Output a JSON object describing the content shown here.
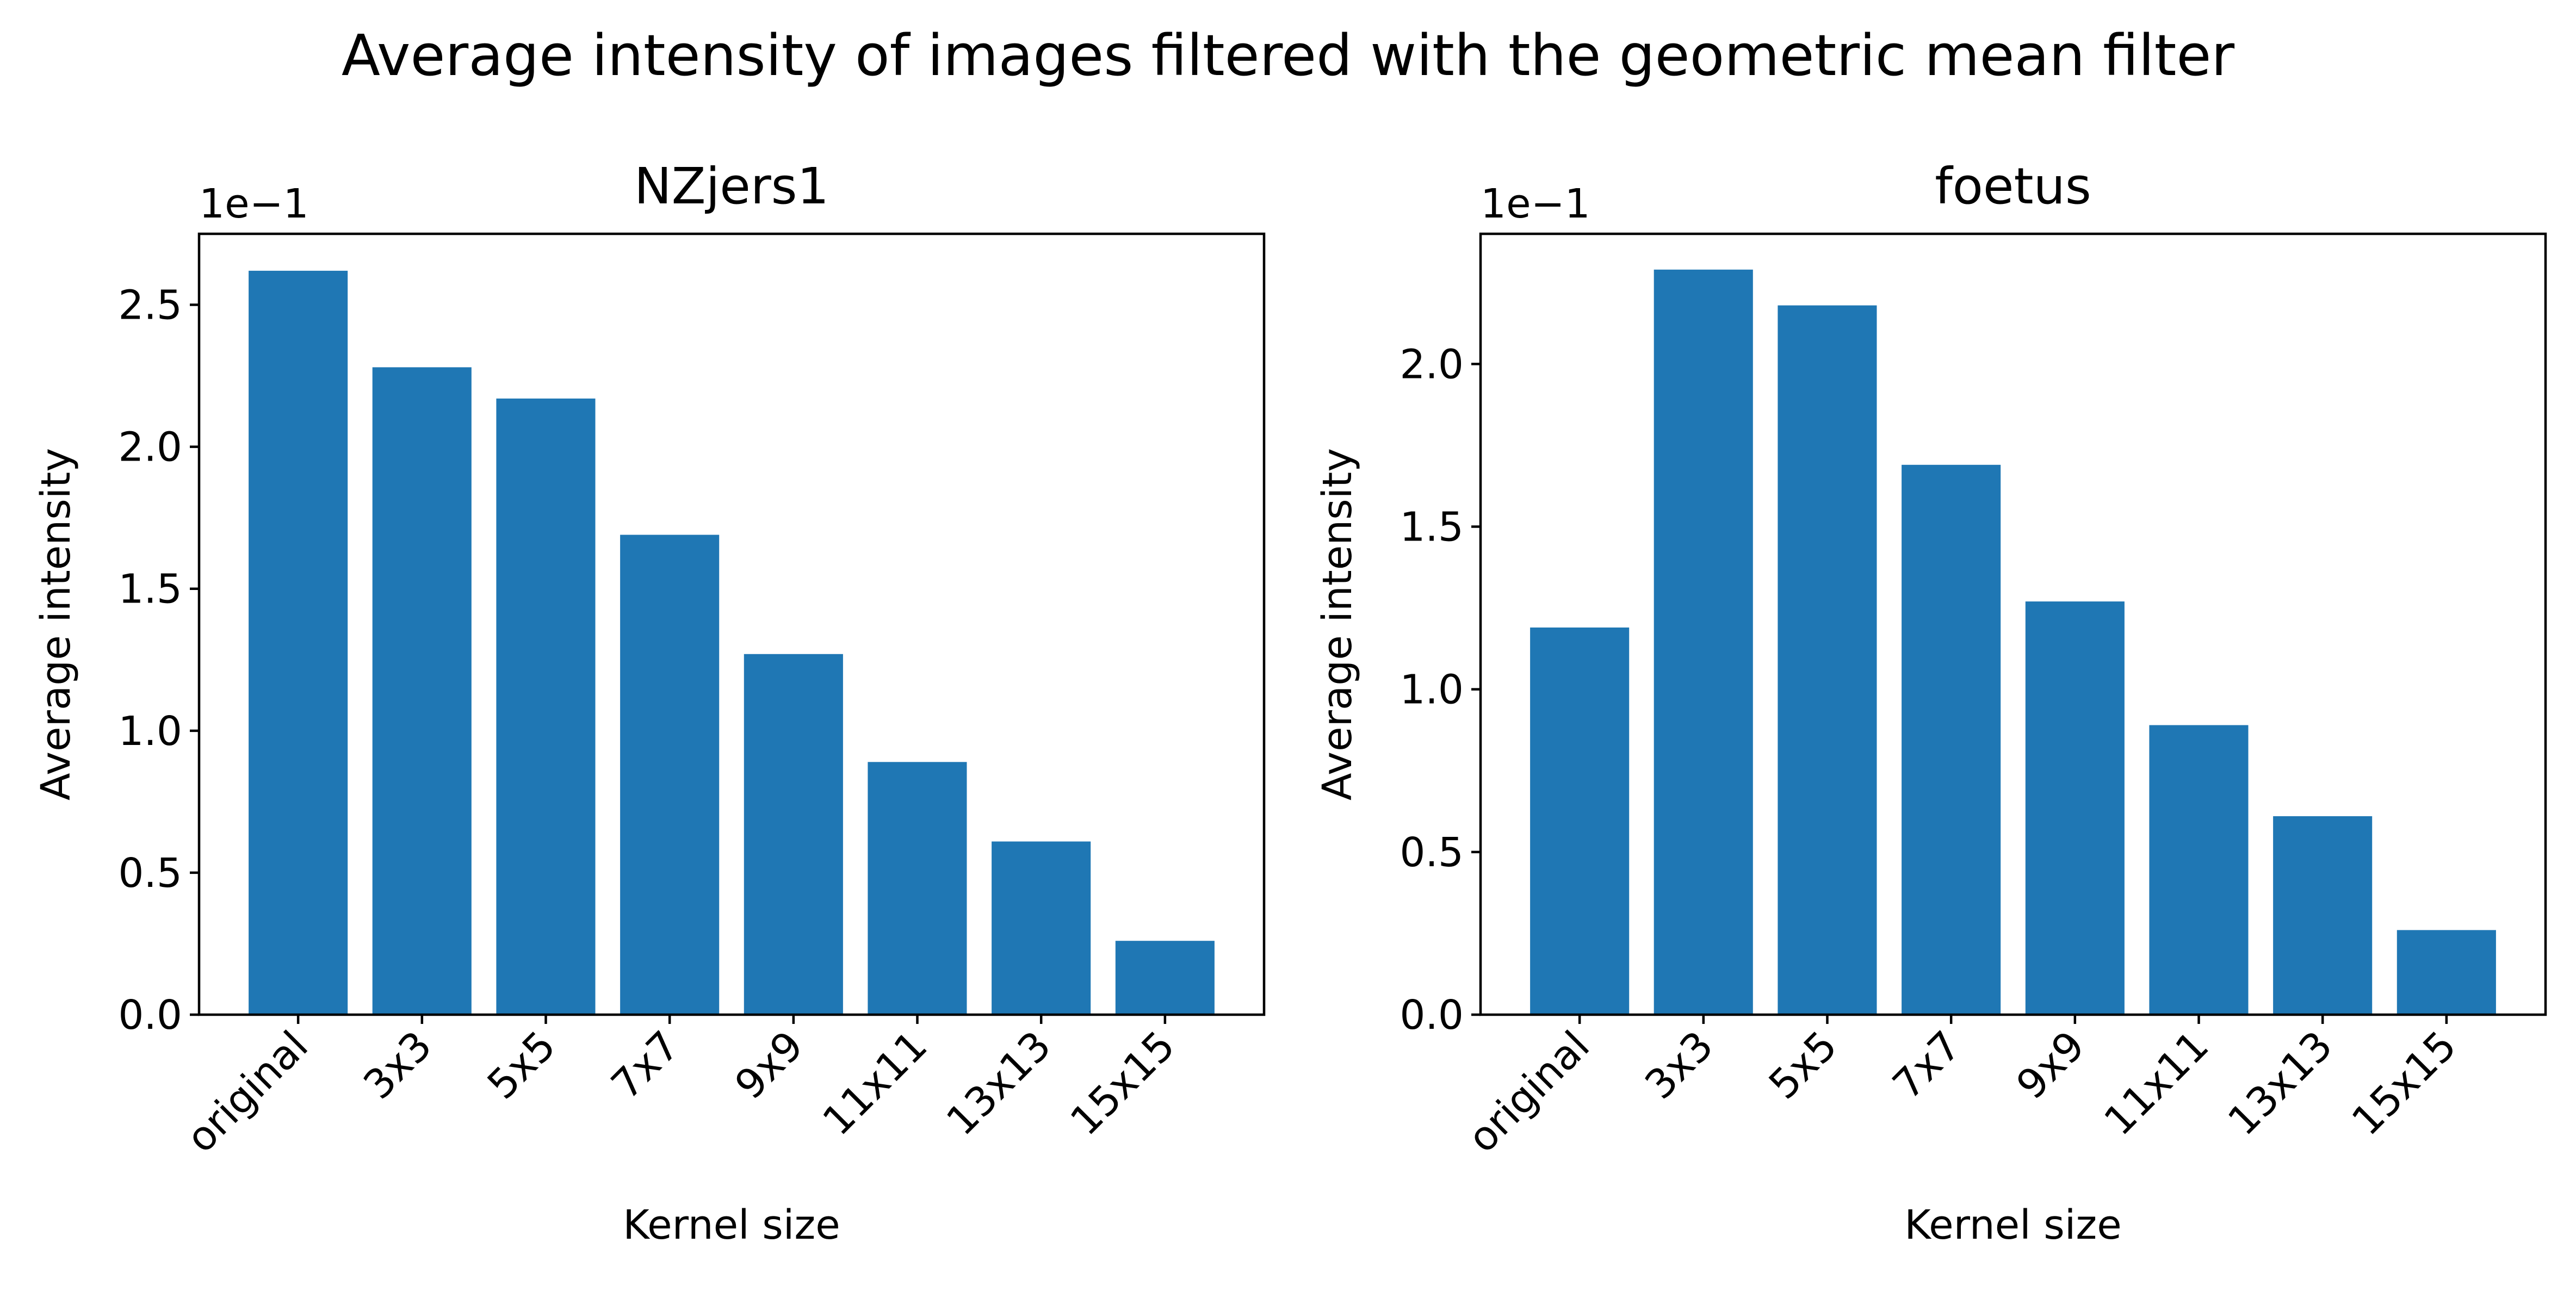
{
  "figure": {
    "suptitle": "Average intensity of images filtered with the geometric mean filter",
    "background": "#ffffff"
  },
  "chart_data": [
    {
      "type": "bar",
      "title": "NZjers1",
      "xlabel": "Kernel size",
      "ylabel": "Average intensity",
      "offset_text": "1e−1",
      "categories": [
        "original",
        "3x3",
        "5x5",
        "7x7",
        "9x9",
        "11x11",
        "13x13",
        "15x15"
      ],
      "values": [
        2.62,
        2.28,
        2.17,
        1.69,
        1.27,
        0.89,
        0.61,
        0.26
      ],
      "bar_color": "#1f77b4",
      "ylim": [
        0,
        2.75
      ],
      "yticks": [
        0.0,
        0.5,
        1.0,
        1.5,
        2.0,
        2.5
      ],
      "ytick_labels": [
        "0.0",
        "0.5",
        "1.0",
        "1.5",
        "2.0",
        "2.5"
      ],
      "grid": false,
      "legend": "none"
    },
    {
      "type": "bar",
      "title": "foetus",
      "xlabel": "Kernel size",
      "ylabel": "Average intensity",
      "offset_text": "1e−1",
      "categories": [
        "original",
        "3x3",
        "5x5",
        "7x7",
        "9x9",
        "11x11",
        "13x13",
        "15x15"
      ],
      "values": [
        1.19,
        2.29,
        2.18,
        1.69,
        1.27,
        0.89,
        0.61,
        0.26
      ],
      "bar_color": "#1f77b4",
      "ylim": [
        0,
        2.4
      ],
      "yticks": [
        0.0,
        0.5,
        1.0,
        1.5,
        2.0
      ],
      "ytick_labels": [
        "0.0",
        "0.5",
        "1.0",
        "1.5",
        "2.0"
      ],
      "grid": false,
      "legend": "none"
    }
  ]
}
